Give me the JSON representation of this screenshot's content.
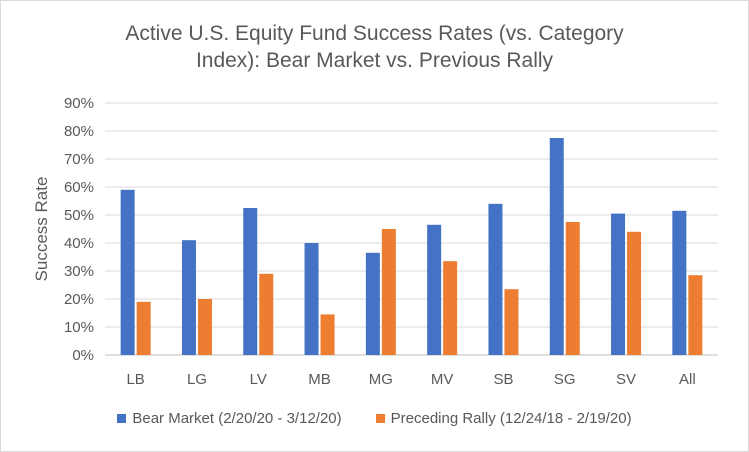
{
  "chart_data": {
    "type": "bar",
    "title_lines": [
      "Active U.S. Equity Fund Success Rates (vs. Category",
      "Index):  Bear Market vs. Previous Rally"
    ],
    "xlabel": "",
    "ylabel": "Success Rate",
    "ylim": [
      0,
      0.9
    ],
    "yticks": [
      0,
      0.1,
      0.2,
      0.3,
      0.4,
      0.5,
      0.6,
      0.7,
      0.8,
      0.9
    ],
    "ytick_labels": [
      "0%",
      "10%",
      "20%",
      "30%",
      "40%",
      "50%",
      "60%",
      "70%",
      "80%",
      "90%"
    ],
    "grid": true,
    "legend_position": "bottom",
    "categories": [
      "LB",
      "LG",
      "LV",
      "MB",
      "MG",
      "MV",
      "SB",
      "SG",
      "SV",
      "All"
    ],
    "series": [
      {
        "name": "Bear Market (2/20/20 - 3/12/20)",
        "color": "#4472c4",
        "values": [
          0.59,
          0.41,
          0.525,
          0.4,
          0.365,
          0.465,
          0.54,
          0.775,
          0.505,
          0.515
        ]
      },
      {
        "name": "Preceding Rally (12/24/18 - 2/19/20)",
        "color": "#ed7d31",
        "values": [
          0.19,
          0.2,
          0.29,
          0.145,
          0.45,
          0.335,
          0.235,
          0.475,
          0.44,
          0.285
        ]
      }
    ]
  }
}
